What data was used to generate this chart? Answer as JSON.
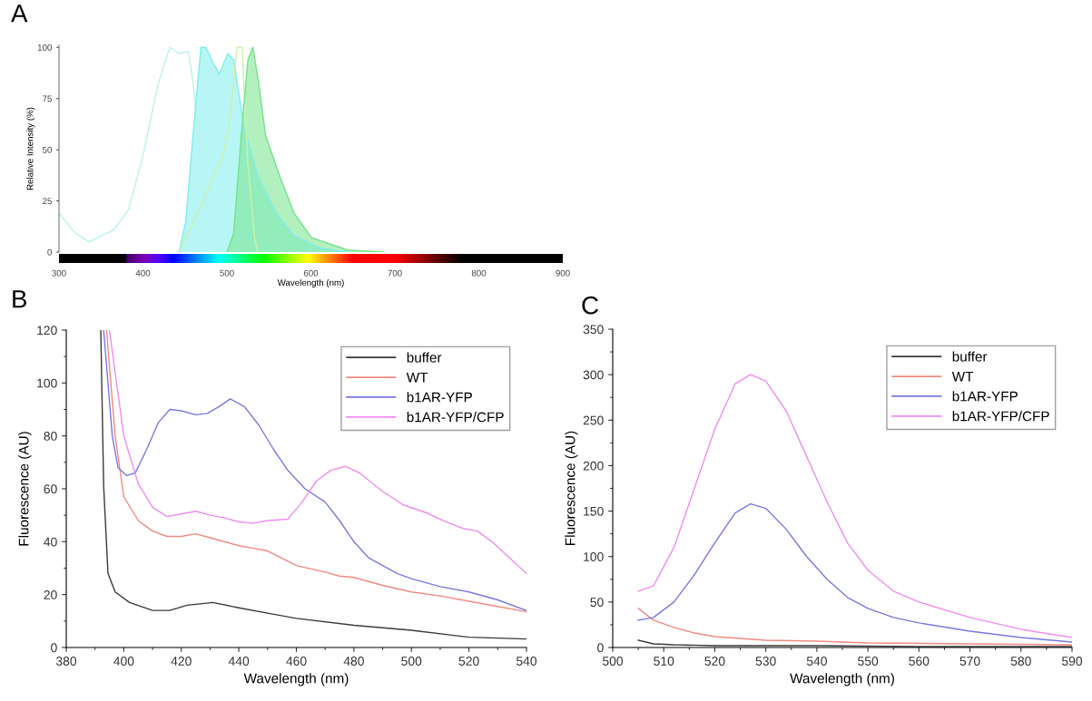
{
  "chart_data": [
    {
      "type": "area",
      "title": "A",
      "xlabel": "Wavelength (nm)",
      "ylabel": "Relative Intensity (%)",
      "xlim": [
        300,
        900
      ],
      "xticks": [
        300,
        400,
        500,
        600,
        700,
        800,
        900
      ],
      "ylim": [
        0,
        101
      ],
      "yticks": [
        0,
        25,
        50,
        75,
        100
      ],
      "grid": false,
      "legend": false,
      "series": [
        {
          "type": "line",
          "color": "#b8f2ec",
          "x": [
            300,
            320,
            336,
            366,
            383,
            400,
            418,
            432,
            443,
            454,
            460,
            471,
            482,
            491
          ],
          "values": [
            19,
            9,
            5,
            11,
            21,
            47,
            82,
            100,
            97,
            98,
            82,
            33,
            7,
            0
          ]
        },
        {
          "type": "area",
          "color": "#7eeeee",
          "x": [
            443,
            451,
            460,
            469,
            475,
            484,
            491,
            501,
            508,
            520,
            537,
            559,
            580,
            610,
            644
          ],
          "values": [
            0,
            15,
            59,
            100,
            100,
            92,
            87,
            97,
            94,
            62,
            37,
            19,
            8,
            2,
            0
          ]
        },
        {
          "type": "line",
          "color": "#ccf2a8",
          "x": [
            443,
            465,
            482,
            495,
            503,
            512,
            518,
            525,
            533,
            537
          ],
          "values": [
            0,
            19,
            35,
            47,
            63,
            100,
            100,
            43,
            7,
            0
          ]
        },
        {
          "type": "area",
          "color": "#74e38a",
          "x": [
            500,
            508,
            517,
            525,
            531,
            538,
            546,
            563,
            580,
            601,
            644,
            687
          ],
          "values": [
            0,
            9,
            57,
            94,
            100,
            82,
            57,
            37,
            19,
            7,
            1,
            0
          ]
        }
      ]
    },
    {
      "type": "line",
      "title": "B",
      "xlabel": "Wavelength (nm)",
      "ylabel": "Fluorescence (AU)",
      "xlim": [
        380,
        540
      ],
      "xticks": [
        380,
        400,
        420,
        440,
        460,
        480,
        500,
        520,
        540
      ],
      "ylim": [
        0,
        120
      ],
      "yticks": [
        0,
        20,
        40,
        60,
        80,
        100,
        120
      ],
      "grid": false,
      "legend": "top right",
      "series": [
        {
          "name": "buffer",
          "color": "#3a3a3a",
          "x": [
            392,
            393,
            394.5,
            397,
            402,
            410,
            416,
            422,
            431,
            440,
            450,
            460,
            480,
            500,
            520,
            540
          ],
          "values": [
            120,
            61,
            28,
            21,
            17,
            14,
            14,
            16,
            17,
            15,
            13,
            11,
            8.4,
            6.5,
            3.9,
            3.2
          ]
        },
        {
          "name": "WT",
          "color": "#f08a80",
          "x": [
            394,
            397,
            400,
            405,
            410,
            415,
            420,
            425,
            430,
            440,
            445,
            450,
            460,
            470,
            475,
            480,
            490,
            500,
            510,
            520,
            530,
            540
          ],
          "values": [
            120,
            80,
            57,
            48,
            44,
            42,
            42,
            43,
            41.5,
            38.5,
            37.5,
            36.5,
            31,
            28.5,
            27,
            26.5,
            23.5,
            21,
            19.5,
            17.5,
            15.5,
            13.5
          ]
        },
        {
          "name": "b1AR-YFP",
          "color": "#7878e0",
          "x": [
            393,
            396,
            398,
            401,
            404,
            408,
            412,
            416,
            420,
            425,
            429,
            433,
            437,
            442,
            447,
            452,
            457,
            463,
            470,
            475,
            480,
            485,
            490,
            495,
            500,
            510,
            520,
            530,
            540
          ],
          "values": [
            120,
            80,
            68,
            65,
            66,
            75,
            85,
            90,
            89.5,
            88,
            88.5,
            91,
            94,
            91,
            84,
            75,
            67,
            60,
            55,
            48,
            40,
            34,
            31,
            28,
            26,
            23,
            21,
            18,
            14
          ]
        },
        {
          "name": "b1AR-YFP/CFP",
          "color": "#f08cf0",
          "x": [
            395,
            400,
            405,
            410,
            415,
            420,
            425,
            430,
            435,
            440,
            445,
            450,
            457,
            462,
            467,
            472,
            477,
            482,
            490,
            497,
            505,
            512,
            518,
            523,
            528,
            535,
            540
          ],
          "values": [
            120,
            80,
            62,
            53,
            49.5,
            50.5,
            51.5,
            50,
            49,
            47.5,
            47,
            48,
            48.5,
            55,
            63,
            67,
            68.5,
            66,
            59,
            54,
            51,
            47.5,
            45,
            44,
            40,
            33,
            28
          ]
        }
      ]
    },
    {
      "type": "line",
      "title": "C",
      "xlabel": "Wavelength (nm)",
      "ylabel": "Fluorescence (AU)",
      "xlim": [
        500,
        590
      ],
      "xticks": [
        500,
        510,
        520,
        530,
        540,
        550,
        560,
        570,
        580,
        590
      ],
      "ylim": [
        0,
        350
      ],
      "yticks": [
        0,
        50,
        100,
        150,
        200,
        250,
        300,
        350
      ],
      "grid": false,
      "legend": "top right",
      "series": [
        {
          "name": "buffer",
          "color": "#3a3a3a",
          "x": [
            505,
            508,
            512,
            520,
            540,
            560,
            590
          ],
          "values": [
            8,
            4,
            3,
            2,
            2,
            1,
            1
          ]
        },
        {
          "name": "WT",
          "color": "#f08a80",
          "x": [
            505,
            508,
            512,
            516,
            520,
            525,
            530,
            540,
            550,
            570,
            590
          ],
          "values": [
            43,
            30,
            22,
            16,
            12,
            10,
            8,
            7,
            5,
            4,
            3
          ]
        },
        {
          "name": "b1AR-YFP",
          "color": "#7878e0",
          "x": [
            505,
            508,
            512,
            516,
            520,
            524,
            527,
            530,
            534,
            538,
            542,
            546,
            550,
            555,
            560,
            570,
            580,
            590
          ],
          "values": [
            30,
            33,
            50,
            80,
            115,
            148,
            158,
            153,
            130,
            100,
            75,
            55,
            43,
            33,
            27,
            18,
            11,
            6
          ]
        },
        {
          "name": "b1AR-YFP/CFP",
          "color": "#f08cf0",
          "x": [
            505,
            508,
            512,
            516,
            520,
            524,
            527,
            530,
            534,
            538,
            542,
            546,
            550,
            555,
            560,
            570,
            580,
            590
          ],
          "values": [
            62,
            68,
            110,
            175,
            240,
            290,
            300,
            293,
            260,
            210,
            160,
            115,
            85,
            62,
            50,
            33,
            20,
            11
          ]
        }
      ]
    }
  ]
}
